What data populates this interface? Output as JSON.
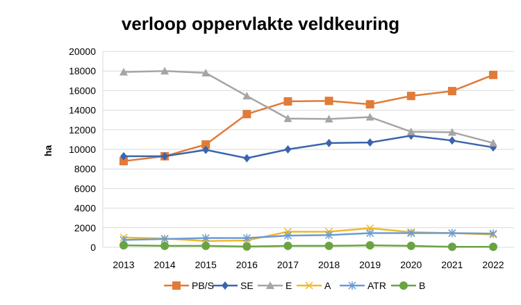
{
  "chart_data": {
    "type": "line",
    "title": "verloop oppervlakte veldkeuring",
    "xlabel": "",
    "ylabel": "ha",
    "ylim": [
      0,
      20000
    ],
    "yticks": [
      0,
      2000,
      4000,
      6000,
      8000,
      10000,
      12000,
      14000,
      16000,
      18000,
      20000
    ],
    "grid": true,
    "legend": "bottom",
    "categories": [
      "2013",
      "2014",
      "2015",
      "2016",
      "2017",
      "2018",
      "2019",
      "2020",
      "2021",
      "2022"
    ],
    "series": [
      {
        "name": "PB/S",
        "color": "#e07b39",
        "marker": "square",
        "values": [
          8800,
          9300,
          10500,
          13600,
          14900,
          14950,
          14600,
          15450,
          15950,
          17600
        ]
      },
      {
        "name": "SE",
        "color": "#3c64ac",
        "marker": "diamond",
        "values": [
          9300,
          9300,
          9950,
          9100,
          10000,
          10650,
          10700,
          11400,
          10900,
          10200
        ]
      },
      {
        "name": "E",
        "color": "#a5a5a5",
        "marker": "triangle",
        "values": [
          17900,
          18000,
          17800,
          15450,
          13150,
          13100,
          13300,
          11800,
          11750,
          10650
        ]
      },
      {
        "name": "A",
        "color": "#f0b92b",
        "marker": "x",
        "values": [
          1000,
          900,
          650,
          700,
          1600,
          1600,
          1950,
          1550,
          1450,
          1300
        ]
      },
      {
        "name": "ATR",
        "color": "#6b9bd2",
        "marker": "star",
        "values": [
          750,
          850,
          950,
          950,
          1200,
          1250,
          1450,
          1450,
          1450,
          1400
        ]
      },
      {
        "name": "B",
        "color": "#6aa342",
        "marker": "circle",
        "values": [
          200,
          150,
          150,
          80,
          150,
          150,
          200,
          150,
          50,
          50
        ]
      }
    ]
  }
}
